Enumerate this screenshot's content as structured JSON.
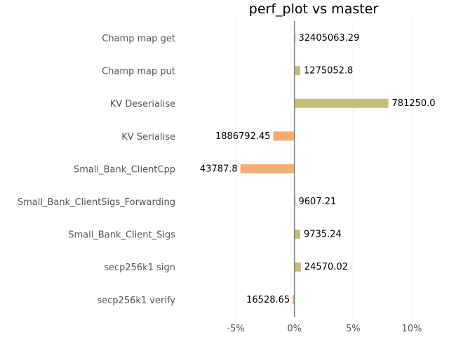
{
  "chart_data": {
    "type": "bar",
    "orientation": "horizontal",
    "title": "perf_plot vs master",
    "xlabel": "",
    "ylabel": "",
    "xlim": [
      -5,
      10
    ],
    "x_ticks": [
      -5,
      0,
      5,
      10
    ],
    "x_tick_labels": [
      "-5%",
      "0%",
      "5%",
      "10%"
    ],
    "grid": "vertical",
    "colors": {
      "positive": "#c3bf7a",
      "negative": "#f5ad70",
      "zero_line": "#808080",
      "grid": "#eeeeee"
    },
    "categories": [
      "Champ map get",
      "Champ map put",
      "KV Deserialise",
      "KV Serialise",
      "Small_Bank_ClientCpp",
      "Small_Bank_ClientSigs_Forwarding",
      "Small_Bank_Client_Sigs",
      "secp256k1 sign",
      "secp256k1 verify"
    ],
    "values": [
      0.05,
      0.5,
      8.0,
      -1.8,
      -4.6,
      0.05,
      0.5,
      0.55,
      -0.15
    ],
    "value_labels": [
      "32405063.29",
      "1275052.8",
      "781250.0",
      "1886792.45",
      "43787.8",
      "9607.21",
      "9735.24",
      "24570.02",
      "16528.65"
    ]
  }
}
